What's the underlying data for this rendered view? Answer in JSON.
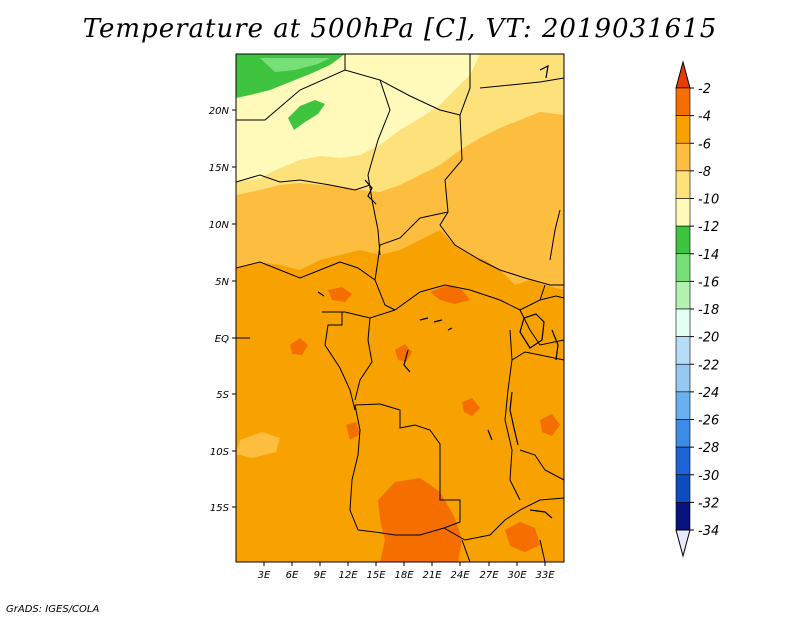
{
  "title": "Temperature at 500hPa [C], VT: 2019031615",
  "credit": "GrADS: IGES/COLA",
  "lat_ticks": [
    "20N",
    "15N",
    "10N",
    "5N",
    "EQ",
    "5S",
    "10S",
    "15S"
  ],
  "lon_ticks": [
    "3E",
    "6E",
    "9E",
    "12E",
    "15E",
    "18E",
    "21E",
    "24E",
    "27E",
    "30E",
    "33E"
  ],
  "colorbar": {
    "labels": [
      "-2",
      "-4",
      "-6",
      "-8",
      "-10",
      "-12",
      "-14",
      "-16",
      "-18",
      "-20",
      "-22",
      "-24",
      "-26",
      "-28",
      "-30",
      "-32",
      "-34"
    ],
    "colors": [
      "#e63c00",
      "#f56e00",
      "#f7a200",
      "#fdbd3f",
      "#fde17a",
      "#fffaba",
      "#3ec43e",
      "#78df78",
      "#b2f1b2",
      "#e4fff4",
      "#b6dcf7",
      "#97c7f3",
      "#6ab0ef",
      "#3e8be4",
      "#1e64d6",
      "#0c4cbd",
      "#08137b",
      "#e8e8ff"
    ]
  },
  "colors": {
    "dominant_field": "#f7a200",
    "warm_spots": "#f56e00",
    "north_yellow": "#fde17a",
    "north_pale": "#fffaba",
    "green_strip": "#3ec43e",
    "orange_light": "#fdbd3f"
  }
}
